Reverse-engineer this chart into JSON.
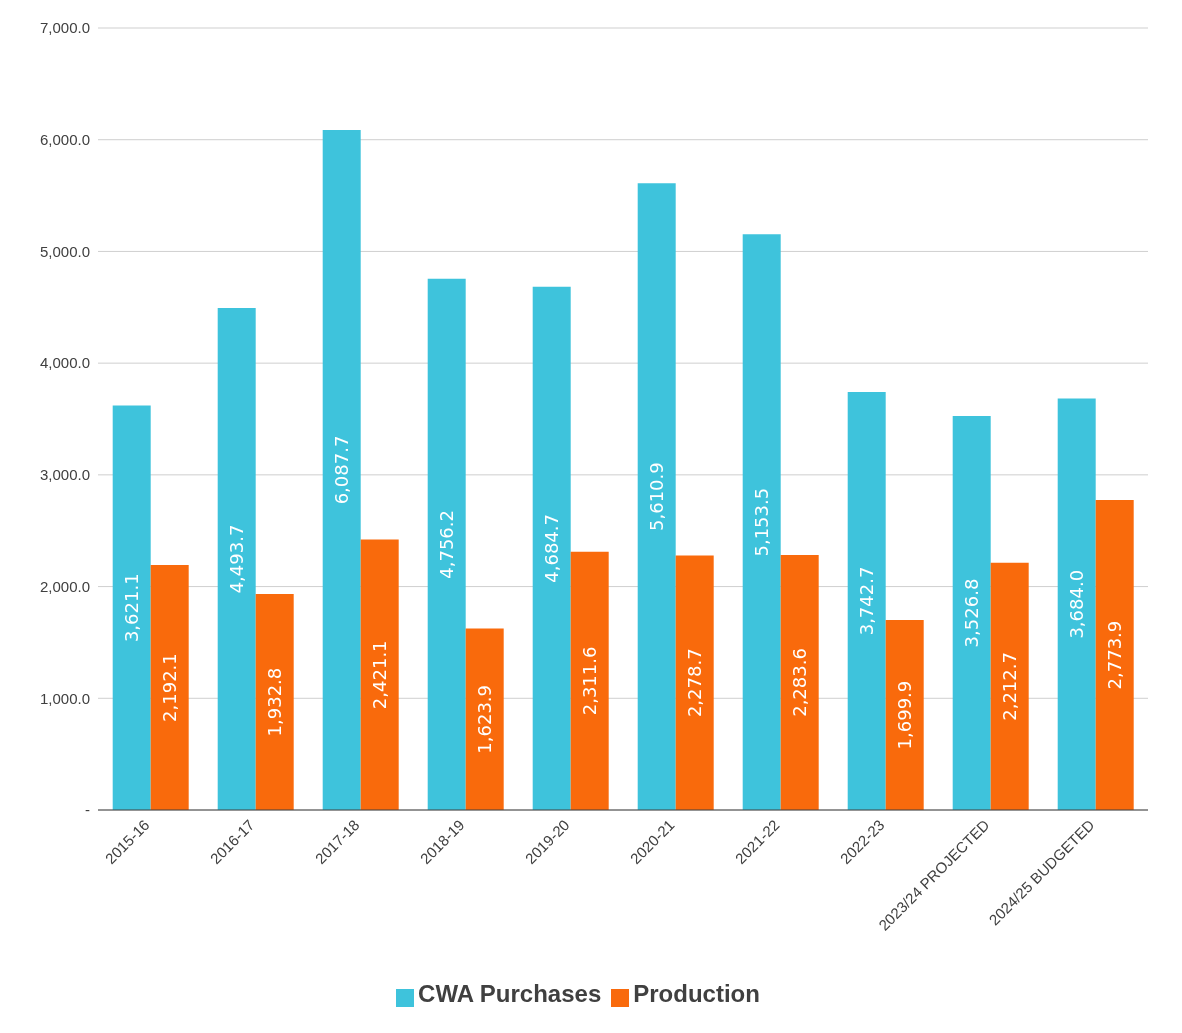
{
  "chart_data": {
    "type": "bar",
    "categories": [
      "2015-16",
      "2016-17",
      "2017-18",
      "2018-19",
      "2019-20",
      "2020-21",
      "2021-22",
      "2022-23",
      "2023/24 PROJECTED",
      "2024/25 BUDGETED"
    ],
    "series": [
      {
        "name": "CWA Purchases",
        "color": "#3ec3dc",
        "values": [
          3621.1,
          4493.7,
          6087.7,
          4756.2,
          4684.7,
          5610.9,
          5153.5,
          3742.7,
          3526.8,
          3684.0
        ],
        "value_labels": [
          "3,621.1",
          "4,493.7",
          "6,087.7",
          "4,756.2",
          "4,684.7",
          "5,610.9",
          "5,153.5",
          "3,742.7",
          "3,526.8",
          "3,684.0"
        ]
      },
      {
        "name": "Production",
        "color": "#f96a0c",
        "values": [
          2192.1,
          1932.8,
          2421.1,
          1623.9,
          2311.6,
          2278.7,
          2283.6,
          1699.9,
          2212.7,
          2773.9
        ],
        "value_labels": [
          "2,192.1",
          "1,932.8",
          "2,421.1",
          "1,623.9",
          "2,311.6",
          "2,278.7",
          "2,283.6",
          "1,699.9",
          "2,212.7",
          "2,773.9"
        ]
      }
    ],
    "ylim": [
      0,
      7000
    ],
    "yticks": [
      {
        "value": 0,
        "label": "-"
      },
      {
        "value": 1000,
        "label": "1,000.0"
      },
      {
        "value": 2000,
        "label": "2,000.0"
      },
      {
        "value": 3000,
        "label": "3,000.0"
      },
      {
        "value": 4000,
        "label": "4,000.0"
      },
      {
        "value": 5000,
        "label": "5,000.0"
      },
      {
        "value": 6000,
        "label": "6,000.0"
      },
      {
        "value": 7000,
        "label": "7,000.0"
      }
    ],
    "grid": "y",
    "legend": "bottom"
  }
}
